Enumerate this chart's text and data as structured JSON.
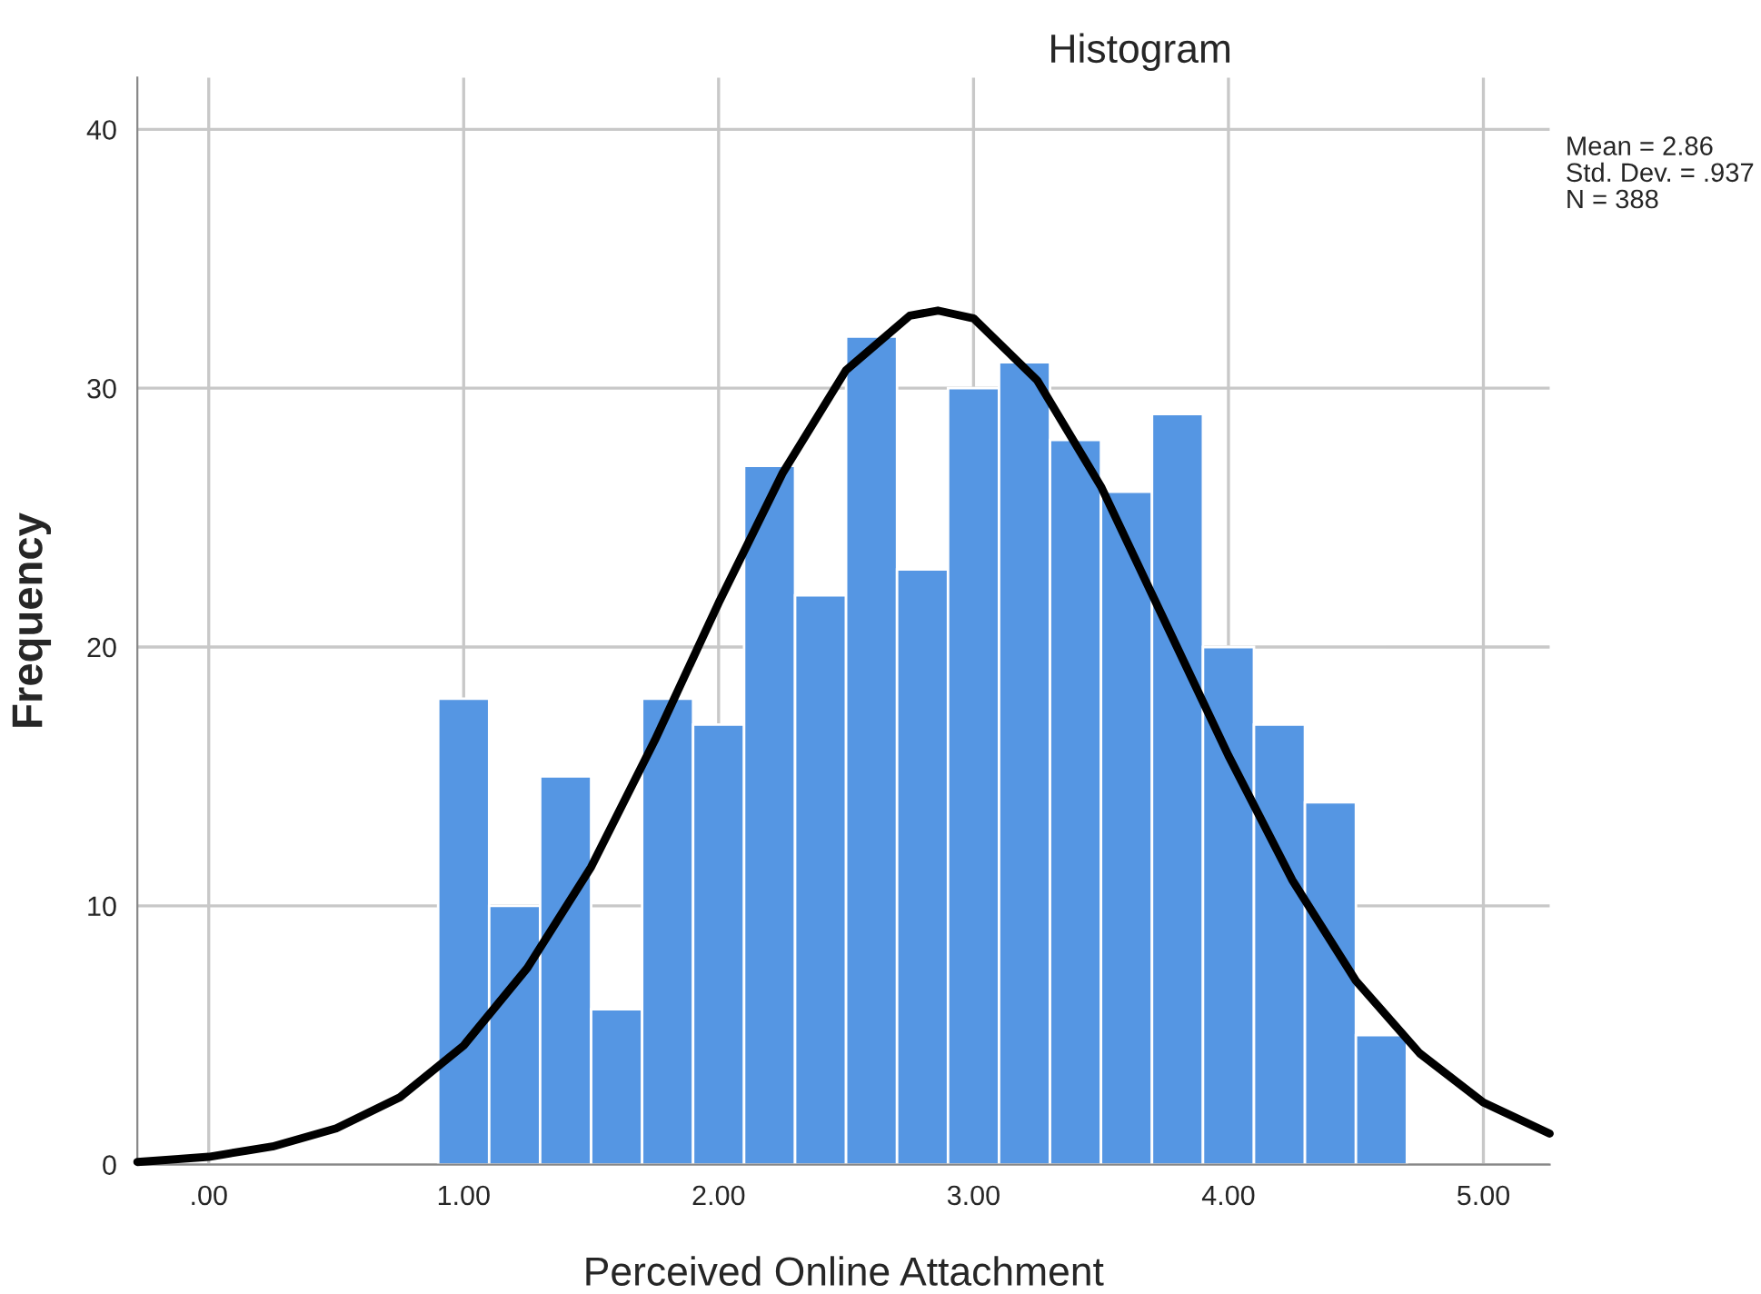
{
  "chart_data": {
    "type": "histogram",
    "title": "Histogram",
    "xlabel": "Perceived Online Attachment",
    "ylabel": "Frequency",
    "bins": [
      0.9,
      1.1,
      1.3,
      1.5,
      1.7,
      1.9,
      2.1,
      2.3,
      2.5,
      2.7,
      2.9,
      3.1,
      3.3,
      3.5,
      3.7,
      3.9,
      4.1,
      4.3,
      4.5,
      4.7
    ],
    "values": [
      18,
      10,
      15,
      6,
      18,
      17,
      27,
      22,
      32,
      23,
      30,
      31,
      28,
      26,
      29,
      20,
      17,
      14,
      5
    ],
    "color": "#5596e3",
    "series": [
      {
        "type": "line",
        "color": "#000000",
        "x": [
          -0.28,
          0,
          0.25,
          0.5,
          0.75,
          1.0,
          1.25,
          1.5,
          1.75,
          2.0,
          2.25,
          2.5,
          2.75,
          2.86,
          3.0,
          3.25,
          3.5,
          3.75,
          4.0,
          4.25,
          4.5,
          4.75,
          5.0,
          5.26
        ],
        "values": [
          0.1,
          0.3,
          0.7,
          1.4,
          2.6,
          4.6,
          7.6,
          11.5,
          16.4,
          21.7,
          26.7,
          30.7,
          32.8,
          33.0,
          32.7,
          30.3,
          26.2,
          21.0,
          15.8,
          11.0,
          7.1,
          4.3,
          2.4,
          1.2
        ]
      }
    ],
    "xlim": [
      -0.28,
      5.26
    ],
    "ylim": [
      0,
      42
    ],
    "xticks": [
      {
        "value": 0,
        "label": ".00"
      },
      {
        "value": 1,
        "label": "1.00"
      },
      {
        "value": 2,
        "label": "2.00"
      },
      {
        "value": 3,
        "label": "3.00"
      },
      {
        "value": 4,
        "label": "4.00"
      },
      {
        "value": 5,
        "label": "5.00"
      }
    ],
    "yticks": [
      0,
      10,
      20,
      30,
      40
    ],
    "grid": true,
    "annotations": [
      "Mean = 2.86",
      "Std. Dev. = .937",
      "N = 388"
    ]
  }
}
